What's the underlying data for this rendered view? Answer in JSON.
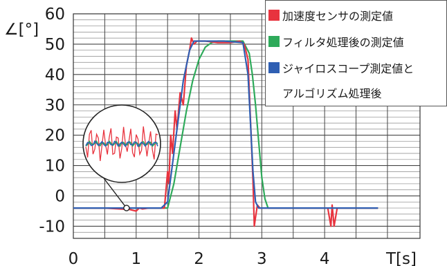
{
  "chart_data": {
    "type": "line",
    "xlabel": "T[s]",
    "ylabel": "∠[°]",
    "xlim": [
      0,
      5.4
    ],
    "ylim": [
      -14,
      60
    ],
    "x_ticks": [
      "0",
      "1",
      "2",
      "3",
      "4"
    ],
    "y_ticks": [
      "60",
      "50",
      "40",
      "30",
      "20",
      "10",
      "0",
      "-10"
    ],
    "grid": true,
    "legend_position": "top-right",
    "series": [
      {
        "name": "加速度センサの測定値",
        "color": "#e8333e",
        "x": [
          0,
          0.5,
          0.9,
          1.0,
          1.05,
          1.1,
          1.2,
          1.35,
          1.45,
          1.5,
          1.52,
          1.55,
          1.58,
          1.62,
          1.65,
          1.7,
          1.75,
          1.8,
          1.85,
          1.88,
          1.92,
          1.97,
          2.02,
          2.1,
          2.3,
          2.5,
          2.65,
          2.72,
          2.78,
          2.82,
          2.86,
          2.88,
          2.9,
          2.93,
          2.97,
          3.05,
          3.3,
          3.8,
          4.05,
          4.1,
          4.12,
          4.15,
          4.2,
          4.3,
          4.6,
          4.85
        ],
        "y": [
          -4,
          -4,
          -4.5,
          -5,
          -4,
          -4.3,
          -4,
          -4,
          -4,
          8,
          4,
          20,
          14,
          28,
          22,
          34,
          30,
          43,
          48,
          52,
          50,
          51,
          51,
          51,
          50.5,
          50.5,
          51,
          50,
          45,
          25,
          5,
          -10,
          -7,
          -3,
          -4,
          -4,
          -4,
          -4,
          -4,
          -10,
          -3,
          -10,
          -4,
          -4,
          -4,
          -4
        ]
      },
      {
        "name": "フィルタ処理後の測定値",
        "color": "#2eaa5a",
        "x": [
          0,
          1.5,
          1.6,
          1.7,
          1.8,
          1.9,
          2.0,
          2.1,
          2.2,
          2.3,
          2.5,
          2.7,
          2.8,
          2.85,
          2.9,
          2.95,
          3.0,
          3.05,
          3.1,
          3.2,
          4.85
        ],
        "y": [
          -4,
          -4,
          4,
          16,
          28,
          38,
          45,
          49,
          50.5,
          51,
          51,
          51,
          47,
          40,
          30,
          18,
          6,
          -1,
          -4,
          -4,
          -4
        ]
      },
      {
        "name": "ジャイロスコープ測定値とアルゴリズム処理後",
        "color": "#2f5fb3",
        "x": [
          0,
          1.4,
          1.5,
          1.55,
          1.65,
          1.75,
          1.85,
          1.92,
          2.0,
          2.4,
          2.7,
          2.78,
          2.82,
          2.86,
          2.9,
          2.95,
          3.0,
          4.85
        ],
        "y": [
          -4,
          -4,
          -2,
          6,
          22,
          38,
          48,
          51,
          51,
          51,
          50.5,
          40,
          24,
          8,
          -2,
          -4,
          -4,
          -4
        ]
      }
    ],
    "legend": [
      "加速度センサの測定値",
      "フィルタ処理後の測定値",
      "ジャイロスコープ測定値と",
      "アルゴリズム処理後"
    ],
    "inset": {
      "type": "magnifier",
      "series_colors": [
        "#e8333e",
        "#2eaa5a",
        "#2f5fb3"
      ],
      "anchor_point": [
        0.45,
        -4
      ]
    }
  }
}
